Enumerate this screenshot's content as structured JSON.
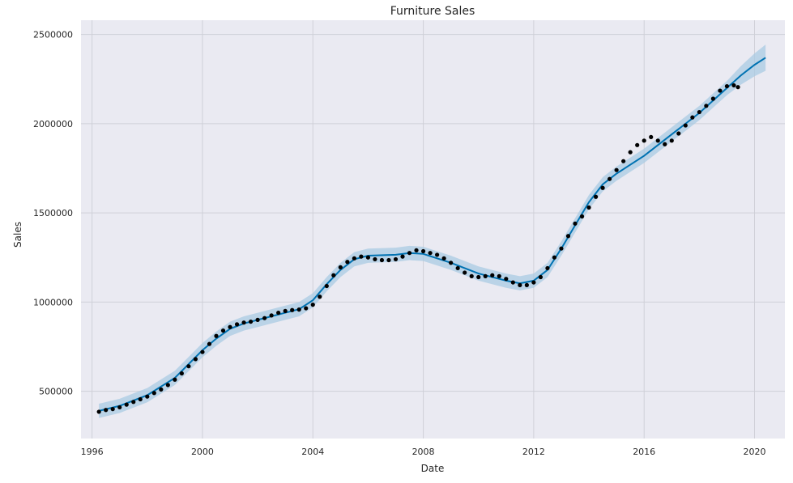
{
  "chart_data": {
    "type": "line",
    "title": "Furniture Sales",
    "xlabel": "Date",
    "ylabel": "Sales",
    "xlim": [
      1995.6,
      2021.1
    ],
    "ylim": [
      235000,
      2580000
    ],
    "grid": true,
    "x_ticks": [
      1996,
      2000,
      2004,
      2008,
      2012,
      2016,
      2020
    ],
    "x_tick_labels": [
      "1996",
      "2000",
      "2004",
      "2008",
      "2012",
      "2016",
      "2020"
    ],
    "y_ticks": [
      500000,
      1000000,
      1500000,
      2000000,
      2500000
    ],
    "y_tick_labels": [
      "500000",
      "1000000",
      "1500000",
      "2000000",
      "2500000"
    ],
    "colors": {
      "plot_bg": "#eaeaf2",
      "grid": "#cfd0d8",
      "forecast_line": "#0072b2",
      "uncertainty_band": "#a9cbe3",
      "observed_points": "#000000"
    },
    "series": [
      {
        "kind": "observed",
        "points": [
          [
            1996.25,
            385000
          ],
          [
            1996.5,
            395000
          ],
          [
            1996.75,
            400000
          ],
          [
            1997.0,
            410000
          ],
          [
            1997.25,
            425000
          ],
          [
            1997.5,
            440000
          ],
          [
            1997.75,
            455000
          ],
          [
            1998.0,
            470000
          ],
          [
            1998.25,
            490000
          ],
          [
            1998.5,
            510000
          ],
          [
            1998.75,
            535000
          ],
          [
            1999.0,
            565000
          ],
          [
            1999.25,
            600000
          ],
          [
            1999.5,
            640000
          ],
          [
            1999.75,
            680000
          ],
          [
            2000.0,
            720000
          ],
          [
            2000.25,
            765000
          ],
          [
            2000.5,
            810000
          ],
          [
            2000.75,
            840000
          ],
          [
            2001.0,
            860000
          ],
          [
            2001.25,
            875000
          ],
          [
            2001.5,
            885000
          ],
          [
            2001.75,
            890000
          ],
          [
            2002.0,
            900000
          ],
          [
            2002.25,
            910000
          ],
          [
            2002.5,
            925000
          ],
          [
            2002.75,
            940000
          ],
          [
            2003.0,
            950000
          ],
          [
            2003.25,
            955000
          ],
          [
            2003.5,
            958000
          ],
          [
            2003.75,
            965000
          ],
          [
            2004.0,
            985000
          ],
          [
            2004.25,
            1030000
          ],
          [
            2004.5,
            1090000
          ],
          [
            2004.75,
            1150000
          ],
          [
            2005.0,
            1195000
          ],
          [
            2005.25,
            1225000
          ],
          [
            2005.5,
            1245000
          ],
          [
            2005.75,
            1255000
          ],
          [
            2006.0,
            1250000
          ],
          [
            2006.25,
            1240000
          ],
          [
            2006.5,
            1235000
          ],
          [
            2006.75,
            1235000
          ],
          [
            2007.0,
            1240000
          ],
          [
            2007.25,
            1255000
          ],
          [
            2007.5,
            1275000
          ],
          [
            2007.75,
            1290000
          ],
          [
            2008.0,
            1285000
          ],
          [
            2008.25,
            1275000
          ],
          [
            2008.5,
            1265000
          ],
          [
            2008.75,
            1245000
          ],
          [
            2009.0,
            1220000
          ],
          [
            2009.25,
            1190000
          ],
          [
            2009.5,
            1165000
          ],
          [
            2009.75,
            1145000
          ],
          [
            2010.0,
            1140000
          ],
          [
            2010.25,
            1145000
          ],
          [
            2010.5,
            1150000
          ],
          [
            2010.75,
            1145000
          ],
          [
            2011.0,
            1130000
          ],
          [
            2011.25,
            1110000
          ],
          [
            2011.5,
            1095000
          ],
          [
            2011.75,
            1095000
          ],
          [
            2012.0,
            1110000
          ],
          [
            2012.25,
            1140000
          ],
          [
            2012.5,
            1190000
          ],
          [
            2012.75,
            1250000
          ],
          [
            2013.0,
            1300000
          ],
          [
            2013.25,
            1370000
          ],
          [
            2013.5,
            1440000
          ],
          [
            2013.75,
            1480000
          ],
          [
            2014.0,
            1530000
          ],
          [
            2014.25,
            1590000
          ],
          [
            2014.5,
            1640000
          ],
          [
            2014.75,
            1690000
          ],
          [
            2015.0,
            1740000
          ],
          [
            2015.25,
            1790000
          ],
          [
            2015.5,
            1840000
          ],
          [
            2015.75,
            1880000
          ],
          [
            2016.0,
            1905000
          ],
          [
            2016.25,
            1925000
          ],
          [
            2016.5,
            1905000
          ],
          [
            2016.75,
            1885000
          ],
          [
            2017.0,
            1905000
          ],
          [
            2017.25,
            1945000
          ],
          [
            2017.5,
            1990000
          ],
          [
            2017.75,
            2035000
          ],
          [
            2018.0,
            2065000
          ],
          [
            2018.25,
            2100000
          ],
          [
            2018.5,
            2140000
          ],
          [
            2018.75,
            2185000
          ],
          [
            2019.0,
            2210000
          ],
          [
            2019.25,
            2215000
          ],
          [
            2019.4,
            2205000
          ]
        ]
      },
      {
        "kind": "forecast",
        "points": [
          [
            1996.25,
            390000
          ],
          [
            1997.0,
            418000
          ],
          [
            1998.0,
            478000
          ],
          [
            1999.0,
            575000
          ],
          [
            2000.0,
            730000
          ],
          [
            2000.5,
            795000
          ],
          [
            2001.0,
            850000
          ],
          [
            2001.5,
            880000
          ],
          [
            2002.0,
            900000
          ],
          [
            2003.0,
            940000
          ],
          [
            2003.5,
            960000
          ],
          [
            2004.0,
            1010000
          ],
          [
            2004.5,
            1100000
          ],
          [
            2005.0,
            1180000
          ],
          [
            2005.5,
            1240000
          ],
          [
            2006.0,
            1260000
          ],
          [
            2007.0,
            1265000
          ],
          [
            2007.5,
            1275000
          ],
          [
            2008.0,
            1270000
          ],
          [
            2009.0,
            1220000
          ],
          [
            2010.0,
            1160000
          ],
          [
            2011.0,
            1120000
          ],
          [
            2011.5,
            1105000
          ],
          [
            2012.0,
            1120000
          ],
          [
            2012.5,
            1180000
          ],
          [
            2013.0,
            1300000
          ],
          [
            2013.5,
            1430000
          ],
          [
            2014.0,
            1560000
          ],
          [
            2014.5,
            1660000
          ],
          [
            2015.0,
            1720000
          ],
          [
            2015.5,
            1770000
          ],
          [
            2016.0,
            1820000
          ],
          [
            2016.5,
            1880000
          ],
          [
            2017.0,
            1940000
          ],
          [
            2017.5,
            2000000
          ],
          [
            2018.0,
            2060000
          ],
          [
            2018.5,
            2130000
          ],
          [
            2019.0,
            2200000
          ],
          [
            2019.5,
            2270000
          ],
          [
            2020.0,
            2330000
          ],
          [
            2020.4,
            2370000
          ]
        ]
      }
    ],
    "band_halfwidth": 40000
  }
}
